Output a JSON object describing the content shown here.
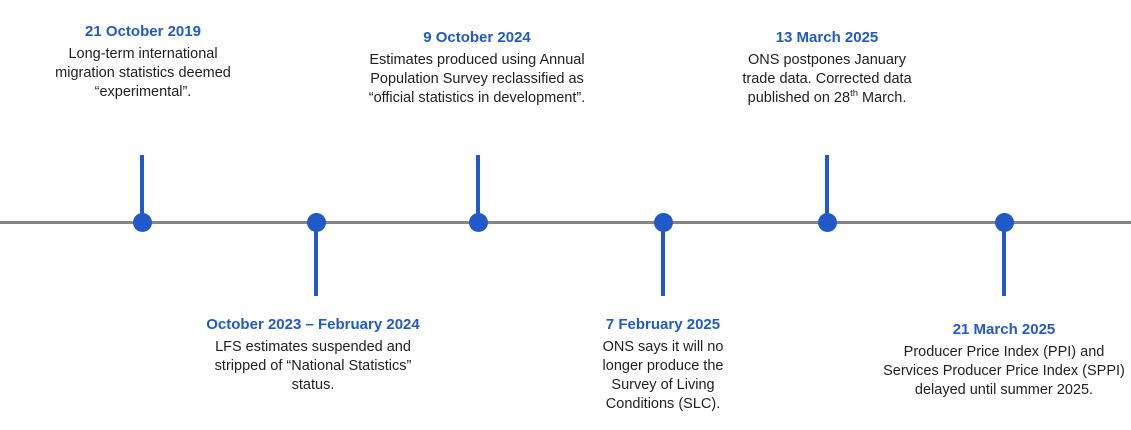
{
  "timeline": {
    "accent_color": "#2159CB",
    "axis_color": "#848484",
    "text_color": "#1F1F1F",
    "events": [
      {
        "date": "21 October 2019",
        "position": "top",
        "body_lines": [
          "Long-term international",
          "migration statistics deemed",
          "“experimental”."
        ]
      },
      {
        "date": "October 2023 – February 2024",
        "position": "bottom",
        "body_lines": [
          "LFS estimates suspended and",
          "stripped of “National Statistics”",
          "status."
        ]
      },
      {
        "date": "9 October 2024",
        "position": "top",
        "body_lines": [
          "Estimates produced using Annual",
          "Population Survey reclassified as",
          "“official statistics in development”."
        ]
      },
      {
        "date": "7 February 2025",
        "position": "bottom",
        "body_lines": [
          "ONS says it will no",
          "longer produce the",
          "Survey of Living",
          "Conditions (SLC)."
        ]
      },
      {
        "date": "13 March 2025",
        "position": "top",
        "body_lines": [
          "ONS postpones January",
          "trade data. Corrected data"
        ],
        "body_line_sup": {
          "pre": "published on 28",
          "sup": "th",
          "post": " March."
        }
      },
      {
        "date": "21 March 2025",
        "position": "bottom",
        "body_lines": [
          "Producer Price Index (PPI) and",
          "Services Producer Price Index (SPPI)",
          "delayed until summer 2025."
        ]
      }
    ]
  }
}
